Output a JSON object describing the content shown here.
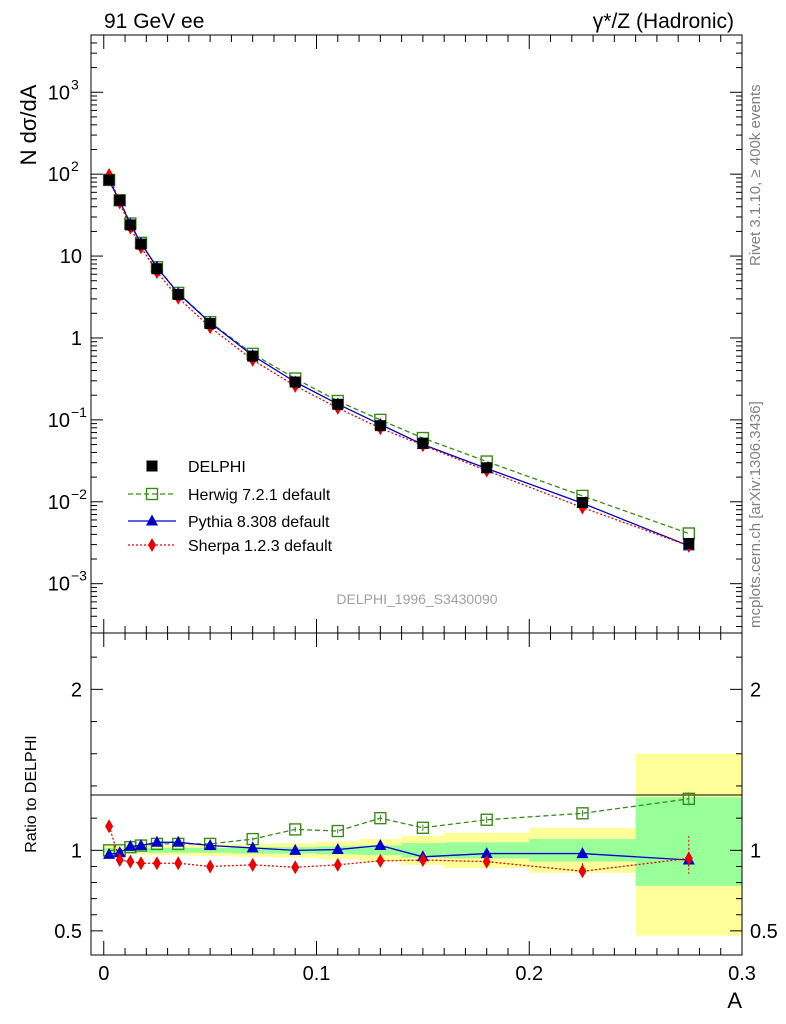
{
  "header": {
    "left": "91 GeV ee",
    "right": "γ*/Z (Hadronic)"
  },
  "side_labels": {
    "rivet": "Rivet 3.1.10, ≥ 400k events",
    "mcplots": "mcplots.cern.ch [arXiv:1306.3436]"
  },
  "watermark": "DELPHI_1996_S3430090",
  "chart_data": [
    {
      "type": "line",
      "panel": "main",
      "ylabel": "N dσ/dA",
      "log_y": true,
      "ylim": [
        0.00025,
        5000
      ],
      "xlim": [
        -0.006,
        0.3
      ],
      "y_ticks": [
        {
          "value": 0.001,
          "label": "10",
          "exp": "−3"
        },
        {
          "value": 0.01,
          "label": "10",
          "exp": "−2"
        },
        {
          "value": 0.1,
          "label": "10",
          "exp": "−1"
        },
        {
          "value": 1,
          "label": "1",
          "exp": ""
        },
        {
          "value": 10,
          "label": "10",
          "exp": ""
        },
        {
          "value": 100,
          "label": "10",
          "exp": "2"
        },
        {
          "value": 1000,
          "label": "10",
          "exp": "3"
        }
      ],
      "legend_position": "left-middle",
      "x": [
        0.0025,
        0.0075,
        0.0125,
        0.0175,
        0.025,
        0.035,
        0.05,
        0.07,
        0.09,
        0.11,
        0.13,
        0.15,
        0.18,
        0.225,
        0.275
      ],
      "series": [
        {
          "name": "DELPHI",
          "style": "data",
          "color": "#000000",
          "values": [
            85,
            48,
            24,
            14,
            7.0,
            3.4,
            1.5,
            0.6,
            0.29,
            0.155,
            0.085,
            0.052,
            0.026,
            0.0098,
            0.0031
          ]
        },
        {
          "name": "Herwig 7.2.1 default",
          "style": "open-square",
          "color": "#3a8a1a",
          "values": [
            85,
            48,
            25,
            14.5,
            7.3,
            3.55,
            1.56,
            0.64,
            0.32,
            0.17,
            0.1,
            0.06,
            0.031,
            0.0118,
            0.0041
          ]
        },
        {
          "name": "Pythia 8.308 default",
          "style": "triangle",
          "color": "#0000cc",
          "values": [
            83,
            47,
            24.5,
            14.3,
            7.3,
            3.5,
            1.54,
            0.61,
            0.29,
            0.156,
            0.088,
            0.05,
            0.0255,
            0.0096,
            0.0029
          ]
        },
        {
          "name": "Sherpa 1.2.3 default",
          "style": "diamond",
          "color": "#ee0000",
          "values": [
            98,
            45,
            22.3,
            12.8,
            6.4,
            3.1,
            1.35,
            0.54,
            0.26,
            0.14,
            0.079,
            0.049,
            0.024,
            0.0085,
            0.0029
          ]
        }
      ]
    },
    {
      "type": "line",
      "panel": "ratio",
      "ylabel": "Ratio to DELPHI",
      "xlabel": "A",
      "ylim": [
        0.35,
        2.35
      ],
      "xlim": [
        -0.006,
        0.3
      ],
      "y_ticks": [
        {
          "value": 0.5,
          "label": "0.5"
        },
        {
          "value": 1,
          "label": "1"
        },
        {
          "value": 2,
          "label": "2"
        }
      ],
      "x_ticks": [
        {
          "value": 0,
          "label": "0"
        },
        {
          "value": 0.1,
          "label": "0.1"
        },
        {
          "value": 0.2,
          "label": "0.2"
        },
        {
          "value": 0.3,
          "label": "0.3"
        }
      ],
      "bands": [
        {
          "x0": 0.0,
          "x1": 0.005,
          "yellow": [
            0.97,
            1.03
          ],
          "green": [
            0.985,
            1.015
          ]
        },
        {
          "x0": 0.005,
          "x1": 0.01,
          "yellow": [
            0.975,
            1.025
          ],
          "green": [
            0.99,
            1.01
          ]
        },
        {
          "x0": 0.01,
          "x1": 0.015,
          "yellow": [
            0.975,
            1.025
          ],
          "green": [
            0.99,
            1.01
          ]
        },
        {
          "x0": 0.015,
          "x1": 0.02,
          "yellow": [
            0.975,
            1.025
          ],
          "green": [
            0.99,
            1.01
          ]
        },
        {
          "x0": 0.02,
          "x1": 0.03,
          "yellow": [
            0.97,
            1.03
          ],
          "green": [
            0.985,
            1.015
          ]
        },
        {
          "x0": 0.03,
          "x1": 0.04,
          "yellow": [
            0.97,
            1.03
          ],
          "green": [
            0.985,
            1.015
          ]
        },
        {
          "x0": 0.04,
          "x1": 0.06,
          "yellow": [
            0.965,
            1.035
          ],
          "green": [
            0.985,
            1.015
          ]
        },
        {
          "x0": 0.06,
          "x1": 0.08,
          "yellow": [
            0.96,
            1.04
          ],
          "green": [
            0.98,
            1.02
          ]
        },
        {
          "x0": 0.08,
          "x1": 0.1,
          "yellow": [
            0.955,
            1.045
          ],
          "green": [
            0.98,
            1.02
          ]
        },
        {
          "x0": 0.1,
          "x1": 0.12,
          "yellow": [
            0.945,
            1.055
          ],
          "green": [
            0.975,
            1.025
          ]
        },
        {
          "x0": 0.12,
          "x1": 0.14,
          "yellow": [
            0.93,
            1.07
          ],
          "green": [
            0.97,
            1.03
          ]
        },
        {
          "x0": 0.14,
          "x1": 0.16,
          "yellow": [
            0.91,
            1.09
          ],
          "green": [
            0.955,
            1.045
          ]
        },
        {
          "x0": 0.16,
          "x1": 0.2,
          "yellow": [
            0.89,
            1.11
          ],
          "green": [
            0.95,
            1.05
          ]
        },
        {
          "x0": 0.2,
          "x1": 0.25,
          "yellow": [
            0.86,
            1.14
          ],
          "green": [
            0.93,
            1.07
          ]
        },
        {
          "x0": 0.25,
          "x1": 0.3,
          "yellow": [
            0.47,
            1.6
          ],
          "green": [
            0.78,
            1.33
          ]
        }
      ],
      "x": [
        0.0025,
        0.0075,
        0.0125,
        0.0175,
        0.025,
        0.035,
        0.05,
        0.07,
        0.09,
        0.11,
        0.13,
        0.15,
        0.18,
        0.225,
        0.275
      ],
      "series": [
        {
          "name": "Herwig 7.2.1 default",
          "style": "open-square",
          "color": "#3a8a1a",
          "values": [
            1.0,
            1.0,
            1.02,
            1.03,
            1.04,
            1.04,
            1.04,
            1.07,
            1.13,
            1.12,
            1.2,
            1.14,
            1.19,
            1.23,
            1.32
          ],
          "err_hi": [
            0.01,
            0.01,
            0.01,
            0.01,
            0.01,
            0.01,
            0.01,
            0.01,
            0.015,
            0.015,
            0.02,
            0.02,
            0.02,
            0.02,
            0.04
          ],
          "err_lo": [
            0.01,
            0.01,
            0.01,
            0.01,
            0.01,
            0.01,
            0.01,
            0.01,
            0.015,
            0.015,
            0.02,
            0.02,
            0.02,
            0.02,
            0.04
          ]
        },
        {
          "name": "Pythia 8.308 default",
          "style": "triangle",
          "color": "#0000cc",
          "values": [
            0.975,
            0.985,
            1.025,
            1.03,
            1.05,
            1.05,
            1.03,
            1.015,
            1.0,
            1.005,
            1.03,
            0.96,
            0.98,
            0.98,
            0.94
          ],
          "err_hi": [
            0.01,
            0.01,
            0.01,
            0.01,
            0.01,
            0.01,
            0.01,
            0.01,
            0.01,
            0.01,
            0.01,
            0.01,
            0.01,
            0.02,
            0.04
          ],
          "err_lo": [
            0.01,
            0.01,
            0.01,
            0.01,
            0.01,
            0.01,
            0.01,
            0.01,
            0.01,
            0.01,
            0.01,
            0.01,
            0.01,
            0.02,
            0.04
          ]
        },
        {
          "name": "Sherpa 1.2.3 default",
          "style": "diamond",
          "color": "#ee0000",
          "values": [
            1.15,
            0.94,
            0.93,
            0.92,
            0.92,
            0.92,
            0.9,
            0.91,
            0.895,
            0.91,
            0.935,
            0.94,
            0.93,
            0.87,
            0.95
          ],
          "err_hi": [
            0.01,
            0.01,
            0.01,
            0.01,
            0.01,
            0.01,
            0.01,
            0.01,
            0.01,
            0.01,
            0.015,
            0.02,
            0.025,
            0.05,
            0.14
          ],
          "err_lo": [
            0.01,
            0.01,
            0.01,
            0.01,
            0.01,
            0.01,
            0.01,
            0.01,
            0.01,
            0.01,
            0.015,
            0.02,
            0.025,
            0.05,
            0.1
          ]
        }
      ]
    }
  ]
}
